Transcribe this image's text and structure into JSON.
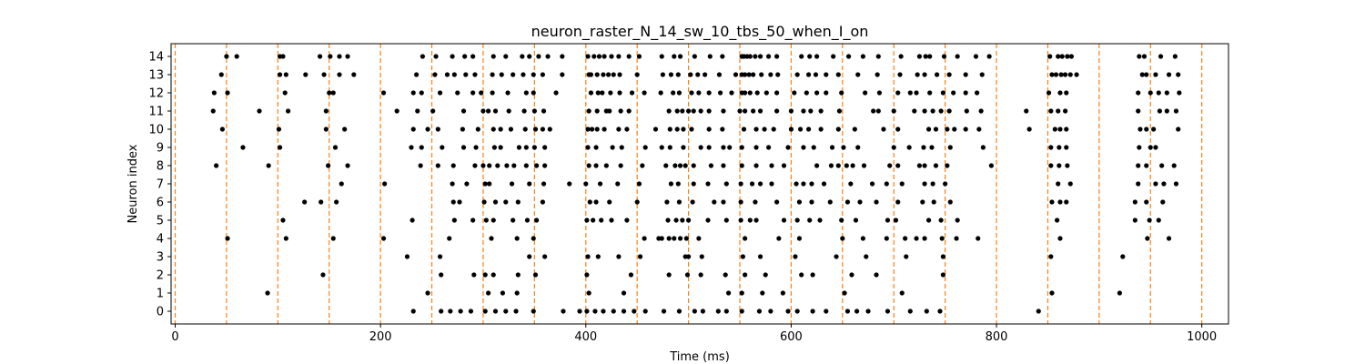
{
  "chart_data": {
    "type": "scatter",
    "title": "neuron_raster_N_14_sw_10_tbs_50_when_I_on",
    "xlabel": "Time (ms)",
    "ylabel": "Neuron index",
    "xlim": [
      -4,
      1026
    ],
    "ylim": [
      -0.7,
      14.7
    ],
    "xticks": [
      0,
      200,
      400,
      600,
      800,
      1000
    ],
    "yticks": [
      0,
      1,
      2,
      3,
      4,
      5,
      6,
      7,
      8,
      9,
      10,
      11,
      12,
      13,
      14
    ],
    "grid": false,
    "marker_color": "#000000",
    "stimulus_times": [
      0,
      50,
      100,
      150,
      200,
      250,
      300,
      350,
      400,
      450,
      500,
      550,
      600,
      650,
      700,
      750,
      800,
      850,
      900,
      950,
      1000
    ],
    "stimulus_line_color": "#ff7f0e",
    "spikes": [
      {
        "neuron": 14,
        "times": [
          50,
          60,
          102,
          105,
          141,
          151,
          160,
          168,
          241,
          254,
          270,
          282,
          290,
          310,
          322,
          338,
          345,
          354,
          363,
          377,
          402,
          408,
          413,
          418,
          425,
          432,
          442,
          452,
          474,
          486,
          492,
          506,
          521,
          533,
          552,
          554,
          557,
          560,
          565,
          570,
          578,
          586,
          610,
          618,
          625,
          641,
          656,
          670,
          685,
          707,
          725,
          731,
          735,
          749,
          762,
          780,
          793,
          852,
          860,
          864,
          869,
          873,
          939,
          944,
          960,
          974
        ]
      },
      {
        "neuron": 13,
        "times": [
          45,
          102,
          108,
          127,
          145,
          160,
          174,
          235,
          253,
          265,
          272,
          283,
          292,
          309,
          318,
          329,
          339,
          349,
          358,
          377,
          403,
          405,
          411,
          417,
          422,
          427,
          433,
          450,
          475,
          483,
          490,
          502,
          509,
          516,
          530,
          546,
          552,
          555,
          559,
          563,
          571,
          580,
          587,
          606,
          617,
          624,
          634,
          646,
          665,
          684,
          706,
          723,
          730,
          742,
          754,
          770,
          786,
          854,
          858,
          863,
          867,
          872,
          878,
          942,
          946,
          955,
          968,
          977
        ]
      },
      {
        "neuron": 12,
        "times": [
          38,
          51,
          107,
          150,
          154,
          203,
          232,
          240,
          258,
          275,
          290,
          298,
          309,
          324,
          342,
          349,
          371,
          405,
          412,
          416,
          424,
          433,
          445,
          457,
          473,
          485,
          491,
          503,
          510,
          520,
          531,
          542,
          552,
          555,
          560,
          567,
          576,
          586,
          603,
          615,
          625,
          634,
          649,
          672,
          686,
          704,
          716,
          722,
          735,
          748,
          758,
          770,
          781,
          851,
          862,
          868,
          938,
          950,
          958,
          966,
          978
        ]
      },
      {
        "neuron": 11,
        "times": [
          37,
          82,
          110,
          147,
          216,
          236,
          251,
          281,
          300,
          305,
          312,
          325,
          340,
          350,
          359,
          403,
          411,
          420,
          423,
          434,
          442,
          481,
          489,
          494,
          500,
          505,
          512,
          520,
          534,
          550,
          555,
          563,
          570,
          586,
          600,
          612,
          619,
          629,
          647,
          680,
          685,
          700,
          720,
          730,
          738,
          746,
          754,
          771,
          785,
          829,
          853,
          860,
          867,
          938,
          959,
          966,
          975
        ]
      },
      {
        "neuron": 10,
        "times": [
          46,
          101,
          147,
          165,
          232,
          246,
          256,
          280,
          295,
          310,
          317,
          327,
          341,
          351,
          358,
          365,
          402,
          406,
          411,
          418,
          432,
          440,
          468,
          482,
          489,
          495,
          503,
          520,
          533,
          554,
          566,
          574,
          583,
          600,
          609,
          617,
          629,
          646,
          662,
          690,
          704,
          734,
          741,
          752,
          759,
          770,
          783,
          832,
          857,
          862,
          868,
          940,
          946,
          953,
          977
        ]
      },
      {
        "neuron": 9,
        "times": [
          66,
          102,
          156,
          230,
          240,
          260,
          281,
          293,
          311,
          317,
          335,
          342,
          350,
          360,
          402,
          410,
          426,
          435,
          458,
          474,
          482,
          495,
          512,
          520,
          534,
          540,
          552,
          566,
          578,
          597,
          612,
          622,
          640,
          651,
          665,
          700,
          715,
          729,
          737,
          755,
          787,
          853,
          861,
          868,
          939,
          950,
          955
        ]
      },
      {
        "neuron": 8,
        "times": [
          40,
          91,
          149,
          168,
          239,
          256,
          271,
          292,
          300,
          306,
          314,
          323,
          330,
          342,
          352,
          360,
          403,
          410,
          420,
          434,
          455,
          478,
          487,
          492,
          497,
          505,
          522,
          534,
          552,
          566,
          581,
          593,
          625,
          639,
          646,
          654,
          660,
          671,
          696,
          704,
          725,
          730,
          741,
          752,
          795,
          853,
          861,
          869,
          938,
          946,
          961,
          973
        ]
      },
      {
        "neuron": 7,
        "times": [
          162,
          204,
          270,
          284,
          302,
          306,
          328,
          345,
          359,
          384,
          400,
          414,
          431,
          452,
          483,
          490,
          505,
          519,
          537,
          551,
          562,
          570,
          581,
          605,
          612,
          620,
          632,
          658,
          679,
          693,
          708,
          730,
          738,
          750,
          860,
          872,
          938,
          955,
          963,
          975
        ]
      },
      {
        "neuron": 6,
        "times": [
          126,
          142,
          157,
          271,
          277,
          301,
          312,
          322,
          334,
          358,
          404,
          410,
          423,
          450,
          479,
          491,
          504,
          525,
          534,
          551,
          565,
          586,
          608,
          620,
          638,
          655,
          667,
          683,
          704,
          728,
          739,
          755,
          854,
          862,
          868,
          935,
          946,
          962
        ]
      },
      {
        "neuron": 5,
        "times": [
          105,
          231,
          272,
          290,
          303,
          310,
          329,
          343,
          352,
          401,
          407,
          415,
          425,
          440,
          480,
          488,
          494,
          500,
          519,
          537,
          551,
          560,
          566,
          593,
          606,
          618,
          628,
          649,
          663,
          694,
          702,
          734,
          746,
          762,
          859,
          935,
          949,
          958
        ]
      },
      {
        "neuron": 4,
        "times": [
          51,
          108,
          154,
          203,
          267,
          308,
          333,
          349,
          457,
          471,
          474,
          481,
          486,
          492,
          498,
          510,
          555,
          588,
          608,
          650,
          670,
          693,
          711,
          722,
          730,
          747,
          761,
          782,
          862,
          947,
          968
        ]
      },
      {
        "neuron": 3,
        "times": [
          226,
          258,
          345,
          360,
          402,
          412,
          432,
          453,
          497,
          500,
          513,
          553,
          570,
          604,
          644,
          673,
          712,
          748,
          853,
          923
        ]
      },
      {
        "neuron": 2,
        "times": [
          144,
          259,
          291,
          302,
          310,
          334,
          351,
          401,
          444,
          481,
          499,
          512,
          536,
          555,
          575,
          610,
          621,
          659,
          683,
          748
        ]
      },
      {
        "neuron": 1,
        "times": [
          90,
          246,
          305,
          319,
          333,
          403,
          437,
          539,
          552,
          572,
          592,
          652,
          708,
          854,
          920
        ]
      },
      {
        "neuron": 0,
        "times": [
          232,
          259,
          268,
          278,
          288,
          302,
          312,
          322,
          332,
          349,
          378,
          394,
          401,
          409,
          417,
          427,
          437,
          447,
          458,
          476,
          491,
          506,
          514,
          529,
          537,
          552,
          569,
          580,
          597,
          606,
          621,
          634,
          655,
          664,
          675,
          694,
          716,
          732,
          745,
          841
        ]
      }
    ]
  }
}
